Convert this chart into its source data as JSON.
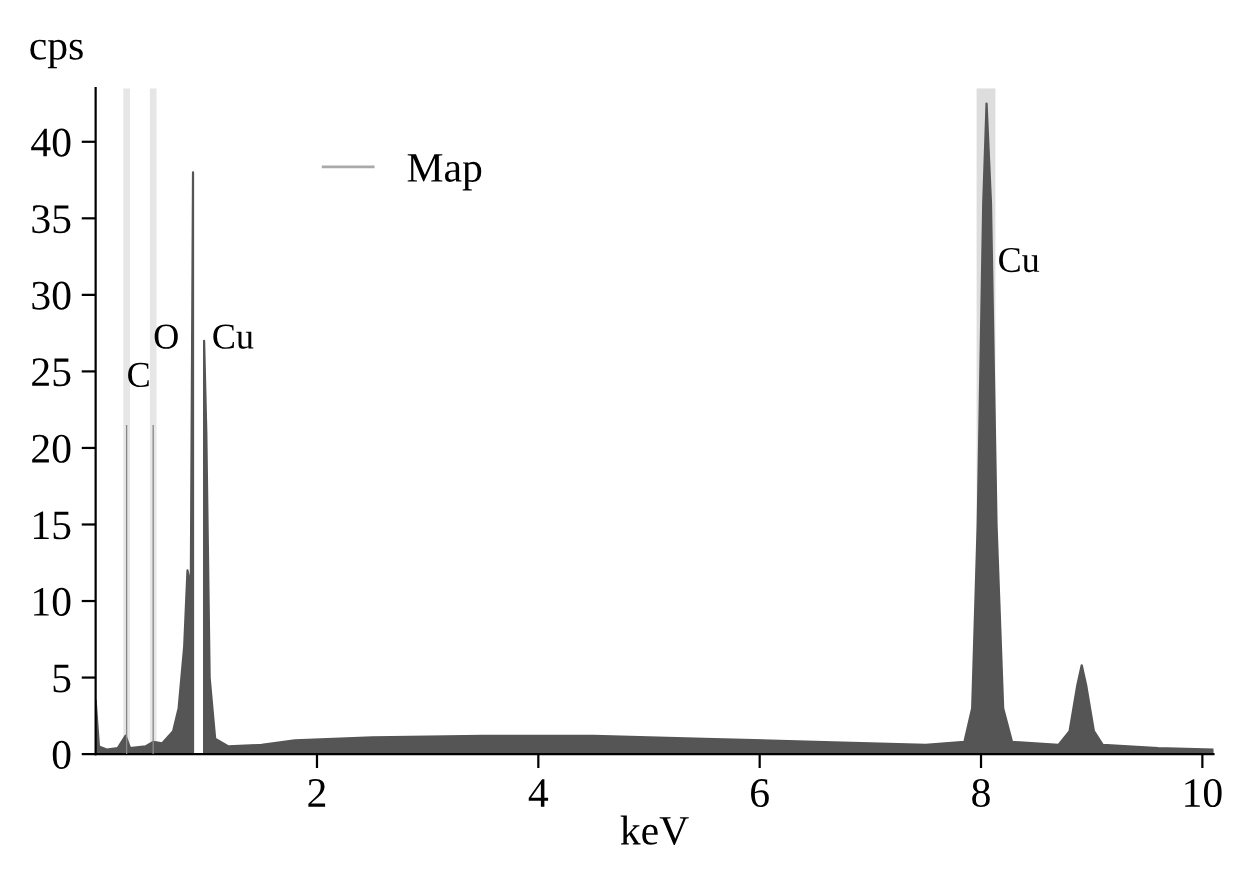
{
  "chart_data": {
    "type": "area",
    "xlabel": "keV",
    "ylabel": "cps",
    "xlim": [
      0,
      10.1
    ],
    "ylim": [
      0,
      43.5
    ],
    "xticks": [
      2,
      4,
      6,
      8,
      10
    ],
    "yticks": [
      0,
      5,
      10,
      15,
      20,
      25,
      30,
      35,
      40
    ],
    "grid": false,
    "legend": "top left",
    "series": [
      {
        "name": "Map",
        "color": "#555555",
        "x": [
          0.0,
          0.03,
          0.1,
          0.2,
          0.27,
          0.31,
          0.45,
          0.52,
          0.6,
          0.7,
          0.75,
          0.8,
          0.83,
          0.86,
          0.88,
          0.9,
          0.95,
          0.98,
          1.0,
          1.03,
          1.08,
          1.2,
          1.5,
          1.8,
          2.5,
          3.5,
          4.5,
          5.5,
          6.5,
          7.5,
          7.85,
          7.92,
          7.97,
          8.02,
          8.05,
          8.09,
          8.14,
          8.2,
          8.28,
          8.7,
          8.8,
          8.87,
          8.91,
          8.95,
          9.02,
          9.1,
          9.6,
          10.1
        ],
        "values": [
          3.5,
          0.5,
          0.3,
          0.4,
          1.2,
          0.4,
          0.5,
          0.8,
          0.7,
          1.5,
          3,
          7,
          12,
          11,
          38,
          null,
          null,
          27,
          21,
          5,
          1,
          0.5,
          0.6,
          0.9,
          1.1,
          1.2,
          1.2,
          1.0,
          0.8,
          0.6,
          0.8,
          3,
          15,
          36,
          42.5,
          36,
          15,
          3,
          0.8,
          0.6,
          1.5,
          4.5,
          5.8,
          4.5,
          1.5,
          0.6,
          0.4,
          0.3
        ]
      },
      {
        "type": "bar",
        "color": "#888888",
        "x": [
          0.28,
          0.52
        ],
        "values": [
          21.5,
          21.5
        ]
      }
    ],
    "bands": [
      {
        "axis": "x",
        "from": 0.25,
        "to": 0.31,
        "color": "#e6e6e6"
      },
      {
        "axis": "x",
        "from": 0.49,
        "to": 0.55,
        "color": "#e6e6e6"
      },
      {
        "axis": "x",
        "from": 7.96,
        "to": 8.13,
        "color": "#dddddd"
      }
    ],
    "annotations": [
      {
        "text": "C",
        "x": 0.28,
        "y": 23.5
      },
      {
        "text": "O",
        "x": 0.52,
        "y": 26
      },
      {
        "text": "Cu",
        "x": 1.05,
        "y": 26
      },
      {
        "text": "Cu",
        "x": 8.15,
        "y": 31
      }
    ]
  }
}
